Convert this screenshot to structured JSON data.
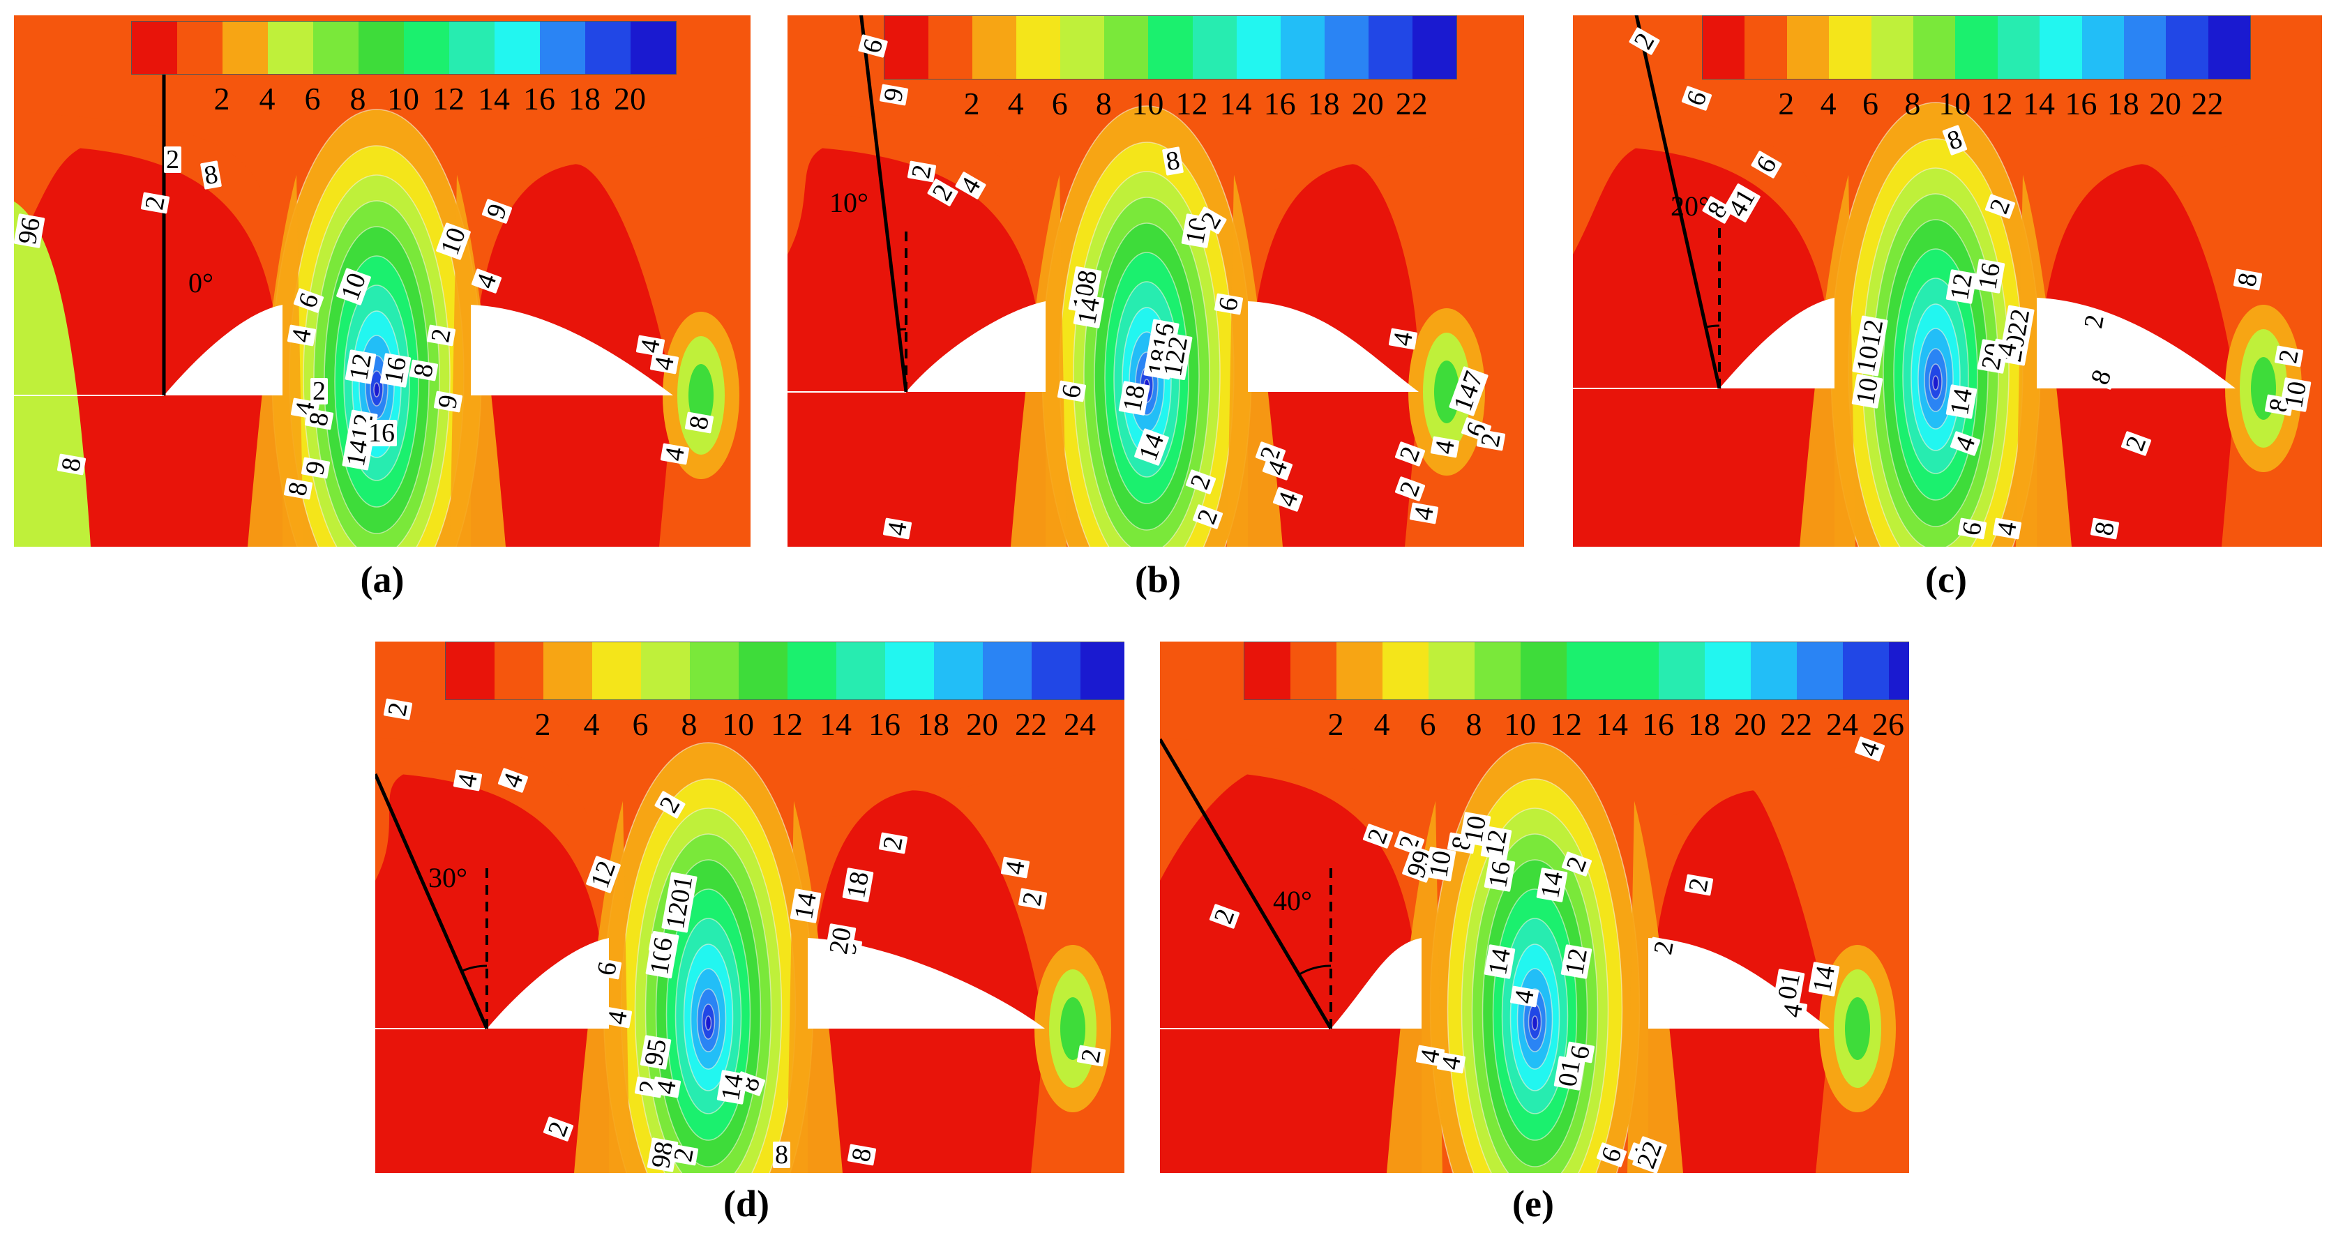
{
  "palette": [
    "#e8140a",
    "#f5560d",
    "#f7a514",
    "#f4e51a",
    "#bff03a",
    "#7ae83a",
    "#3edc3a",
    "#1bf06e",
    "#27ecb0",
    "#22f6f0",
    "#22bef7",
    "#2a84f4",
    "#2147e6",
    "#1a1ad0"
  ],
  "panels": [
    {
      "id": "a",
      "caption": "(a)",
      "angle_label": "0°",
      "colorbar_ticks": [
        "2",
        "4",
        "6",
        "8",
        "10",
        "12",
        "14",
        "16",
        "18",
        "20"
      ],
      "contour_labels": [
        "2",
        "8",
        "96",
        "2",
        "6",
        "10",
        "10",
        "9",
        "4",
        "4",
        "2",
        "12",
        "16",
        "8",
        "9",
        "4",
        "8",
        "1412",
        "16",
        "8",
        "9",
        "8",
        "2",
        "4",
        "4",
        "8",
        "4"
      ]
    },
    {
      "id": "b",
      "caption": "(b)",
      "angle_label": "10°",
      "colorbar_ticks": [
        "2",
        "4",
        "6",
        "8",
        "10",
        "12",
        "14",
        "16",
        "18",
        "20",
        "22"
      ],
      "contour_labels": [
        "9",
        "6",
        "2",
        "2",
        "4",
        "8",
        "10",
        "2",
        "108",
        "14",
        "1816",
        "122",
        "18",
        "6",
        "6",
        "14",
        "2",
        "4",
        "4",
        "2",
        "2",
        "4",
        "4",
        "2",
        "2",
        "4",
        "4",
        "147",
        "6",
        "2"
      ]
    },
    {
      "id": "c",
      "caption": "(c)",
      "angle_label": "20°",
      "colorbar_ticks": [
        "2",
        "4",
        "6",
        "8",
        "10",
        "12",
        "14",
        "16",
        "18",
        "20",
        "22"
      ],
      "contour_labels": [
        "2",
        "6",
        "6",
        "8",
        "41",
        "2",
        "8",
        "12",
        "16",
        "2022",
        "20",
        "4",
        "2",
        "8",
        "1012",
        "10",
        "14",
        "4",
        "2",
        "8",
        "2",
        "8",
        "10",
        "4",
        "6",
        "8"
      ]
    },
    {
      "id": "d",
      "caption": "(d)",
      "angle_label": "30°",
      "colorbar_ticks": [
        "2",
        "4",
        "6",
        "8",
        "10",
        "12",
        "14",
        "16",
        "18",
        "20",
        "22",
        "24"
      ],
      "contour_labels": [
        "2",
        "4",
        "4",
        "12",
        "1201",
        "101",
        "6",
        "6",
        "4",
        "2",
        "9",
        "14",
        "20",
        "18",
        "8",
        "95",
        "2",
        "4",
        "14",
        "2",
        "98",
        "2",
        "8",
        "8",
        "2",
        "4",
        "2",
        "2"
      ]
    },
    {
      "id": "e",
      "caption": "(e)",
      "angle_label": "40°",
      "colorbar_ticks": [
        "2",
        "4",
        "6",
        "8",
        "10",
        "12",
        "14",
        "16",
        "18",
        "20",
        "22",
        "24",
        "26"
      ],
      "contour_labels": [
        "2",
        "2",
        "2",
        "99",
        "10",
        "8",
        "10",
        "12",
        "16",
        "14",
        "12",
        "14",
        "4",
        "2",
        "2",
        "2",
        "4",
        "4",
        "01",
        "4",
        "14",
        "01",
        "6",
        "6",
        "4",
        "22",
        "4"
      ]
    }
  ]
}
